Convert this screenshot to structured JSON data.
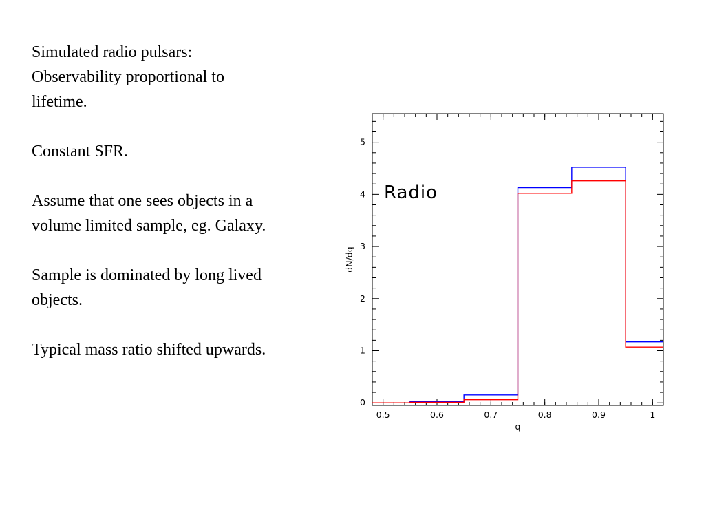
{
  "slide": {
    "paragraphs": [
      {
        "lines": [
          "Simulated radio pulsars:",
          "Observability proportional to",
          "lifetime."
        ]
      },
      {
        "lines": [
          "Constant SFR."
        ]
      },
      {
        "lines": [
          "Assume that one sees objects in a",
          "volume limited sample, eg. Galaxy."
        ]
      },
      {
        "lines": [
          "Sample is dominated by long lived",
          "objects."
        ]
      },
      {
        "lines": [
          "Typical mass ratio shifted upwards."
        ]
      }
    ]
  },
  "chart_data": {
    "type": "histogram",
    "annotation": "Radio",
    "xlabel": "q",
    "ylabel": "dN/dq",
    "xlim": [
      0.48,
      1.02
    ],
    "ylim": [
      -0.05,
      5.55
    ],
    "xticks": [
      0.5,
      0.6,
      0.7,
      0.8,
      0.9,
      1
    ],
    "xtick_labels": [
      "0.5",
      "0.6",
      "0.7",
      "0.8",
      "0.9",
      "1"
    ],
    "yticks": [
      0,
      1,
      2,
      3,
      4,
      5
    ],
    "ytick_labels": [
      "0",
      "1",
      "2",
      "3",
      "4",
      "5"
    ],
    "grid": false,
    "bin_edges": [
      0.45,
      0.55,
      0.65,
      0.75,
      0.85,
      0.95,
      1.05
    ],
    "series": [
      {
        "color": "#0000ff",
        "values": [
          0.0,
          0.02,
          0.15,
          4.13,
          4.52,
          1.17
        ]
      },
      {
        "color": "#ff0000",
        "values": [
          0.0,
          0.01,
          0.06,
          4.02,
          4.26,
          1.07
        ]
      }
    ]
  }
}
